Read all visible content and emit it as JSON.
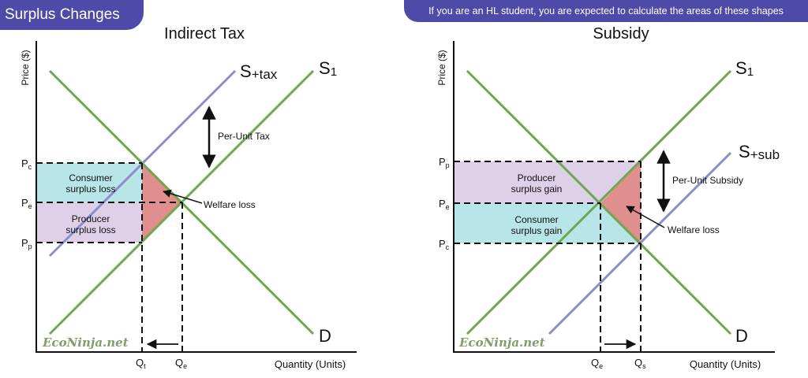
{
  "header": {
    "tab_title": "Surplus Changes",
    "banner_text": "If you are an HL student, you are expected to calculate the areas of these shapes"
  },
  "colors": {
    "supply": "#6ea84f",
    "taxed_supply": "#8d8ec9",
    "consumer": "#b7e5e8",
    "producer": "#ddd0e8",
    "welfare": "#e08e8e",
    "brand": "#4f49a8"
  },
  "watermark": "EcoNinja.net",
  "left_diagram": {
    "title": "Indirect Tax",
    "y_axis_label": "Price ($)",
    "x_axis_label": "Quantity (Units)",
    "supply_label_main": "S",
    "supply_label_sub": "1",
    "shifted_supply_main": "S",
    "shifted_supply_sub": "+tax",
    "demand_label": "D",
    "per_unit_label": "Per-Unit Tax",
    "consumer_area_line1": "Consumer",
    "consumer_area_line2": "surplus loss",
    "producer_area_line1": "Producer",
    "producer_area_line2": "surplus loss",
    "welfare_label": "Welfare loss",
    "y_ticks": [
      {
        "main": "P",
        "sub": "c"
      },
      {
        "main": "P",
        "sub": "e"
      },
      {
        "main": "P",
        "sub": "p"
      }
    ],
    "x_ticks": [
      {
        "main": "Q",
        "sub": "t"
      },
      {
        "main": "Q",
        "sub": "e"
      }
    ]
  },
  "right_diagram": {
    "title": "Subsidy",
    "y_axis_label": "Price ($)",
    "x_axis_label": "Quantity (Units)",
    "supply_label_main": "S",
    "supply_label_sub": "1",
    "shifted_supply_main": "S",
    "shifted_supply_sub": "+sub",
    "demand_label": "D",
    "per_unit_label": "Per-Unit Subsidy",
    "producer_area_line1": "Producer",
    "producer_area_line2": "surplus gain",
    "consumer_area_line1": "Consumer",
    "consumer_area_line2": "surplus gain",
    "welfare_label": "Welfare loss",
    "y_ticks": [
      {
        "main": "P",
        "sub": "p"
      },
      {
        "main": "P",
        "sub": "e"
      },
      {
        "main": "P",
        "sub": "c"
      }
    ],
    "x_ticks": [
      {
        "main": "Q",
        "sub": "e"
      },
      {
        "main": "Q",
        "sub": "s"
      }
    ]
  }
}
